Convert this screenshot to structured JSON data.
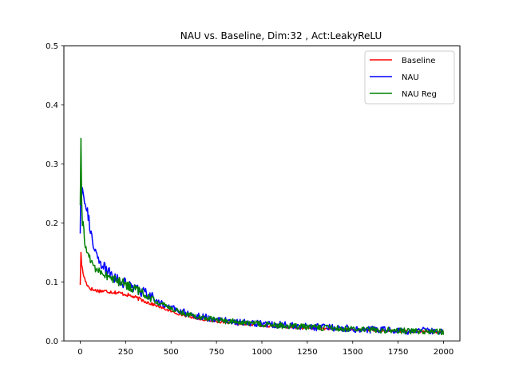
{
  "chart_data": {
    "type": "line",
    "title": "NAU vs. Baseline, Dim:32 , Act:LeakyReLU",
    "xlabel": "",
    "ylabel": "",
    "xlim": [
      -90,
      2090
    ],
    "ylim": [
      0,
      0.5
    ],
    "xticks": [
      0,
      250,
      500,
      750,
      1000,
      1250,
      1500,
      1750,
      2000
    ],
    "xtick_labels": [
      "0",
      "250",
      "500",
      "750",
      "1000",
      "1250",
      "1500",
      "1750",
      "2000"
    ],
    "yticks": [
      0.0,
      0.1,
      0.2,
      0.3,
      0.4,
      0.5
    ],
    "ytick_labels": [
      "0.0",
      "0.1",
      "0.2",
      "0.3",
      "0.4",
      "0.5"
    ],
    "grid": false,
    "legend_position": "top-right",
    "series": [
      {
        "name": "Baseline",
        "color": "#ff0000",
        "points": [
          [
            0,
            0.095
          ],
          [
            3,
            0.155
          ],
          [
            8,
            0.13
          ],
          [
            15,
            0.115
          ],
          [
            30,
            0.1
          ],
          [
            50,
            0.09
          ],
          [
            75,
            0.086
          ],
          [
            100,
            0.085
          ],
          [
            150,
            0.084
          ],
          [
            200,
            0.082
          ],
          [
            250,
            0.079
          ],
          [
            300,
            0.074
          ],
          [
            350,
            0.068
          ],
          [
            400,
            0.062
          ],
          [
            450,
            0.056
          ],
          [
            500,
            0.05
          ],
          [
            550,
            0.045
          ],
          [
            600,
            0.041
          ],
          [
            650,
            0.038
          ],
          [
            700,
            0.035
          ],
          [
            800,
            0.031
          ],
          [
            900,
            0.028
          ],
          [
            1000,
            0.026
          ],
          [
            1100,
            0.024
          ],
          [
            1200,
            0.022
          ],
          [
            1300,
            0.021
          ],
          [
            1400,
            0.02
          ],
          [
            1500,
            0.019
          ],
          [
            1600,
            0.018
          ],
          [
            1700,
            0.017
          ],
          [
            1800,
            0.016
          ],
          [
            1900,
            0.0155
          ],
          [
            2000,
            0.015
          ]
        ],
        "noise": 0.002
      },
      {
        "name": "NAU",
        "color": "#0000ff",
        "points": [
          [
            0,
            0.182
          ],
          [
            3,
            0.3
          ],
          [
            8,
            0.25
          ],
          [
            15,
            0.26
          ],
          [
            25,
            0.24
          ],
          [
            40,
            0.22
          ],
          [
            55,
            0.19
          ],
          [
            75,
            0.155
          ],
          [
            100,
            0.135
          ],
          [
            150,
            0.118
          ],
          [
            200,
            0.105
          ],
          [
            250,
            0.097
          ],
          [
            300,
            0.09
          ],
          [
            350,
            0.082
          ],
          [
            400,
            0.072
          ],
          [
            450,
            0.063
          ],
          [
            500,
            0.056
          ],
          [
            550,
            0.05
          ],
          [
            600,
            0.046
          ],
          [
            650,
            0.042
          ],
          [
            700,
            0.039
          ],
          [
            800,
            0.035
          ],
          [
            900,
            0.031
          ],
          [
            1000,
            0.029
          ],
          [
            1100,
            0.027
          ],
          [
            1200,
            0.025
          ],
          [
            1300,
            0.023
          ],
          [
            1400,
            0.022
          ],
          [
            1500,
            0.021
          ],
          [
            1600,
            0.019
          ],
          [
            1700,
            0.018
          ],
          [
            1800,
            0.017
          ],
          [
            1900,
            0.017
          ],
          [
            2000,
            0.016
          ]
        ],
        "noise": 0.006
      },
      {
        "name": "NAU Reg",
        "color": "#008000",
        "points": [
          [
            0,
            0.23
          ],
          [
            3,
            0.37
          ],
          [
            6,
            0.29
          ],
          [
            10,
            0.19
          ],
          [
            15,
            0.2
          ],
          [
            25,
            0.165
          ],
          [
            40,
            0.15
          ],
          [
            60,
            0.135
          ],
          [
            80,
            0.125
          ],
          [
            100,
            0.12
          ],
          [
            150,
            0.11
          ],
          [
            200,
            0.102
          ],
          [
            250,
            0.096
          ],
          [
            300,
            0.088
          ],
          [
            350,
            0.08
          ],
          [
            400,
            0.07
          ],
          [
            450,
            0.062
          ],
          [
            500,
            0.055
          ],
          [
            550,
            0.049
          ],
          [
            600,
            0.045
          ],
          [
            650,
            0.041
          ],
          [
            700,
            0.038
          ],
          [
            800,
            0.034
          ],
          [
            900,
            0.031
          ],
          [
            1000,
            0.028
          ],
          [
            1100,
            0.026
          ],
          [
            1200,
            0.024
          ],
          [
            1300,
            0.023
          ],
          [
            1400,
            0.021
          ],
          [
            1500,
            0.02
          ],
          [
            1600,
            0.019
          ],
          [
            1700,
            0.018
          ],
          [
            1800,
            0.017
          ],
          [
            1900,
            0.016
          ],
          [
            2000,
            0.015
          ]
        ],
        "noise": 0.005
      }
    ]
  }
}
